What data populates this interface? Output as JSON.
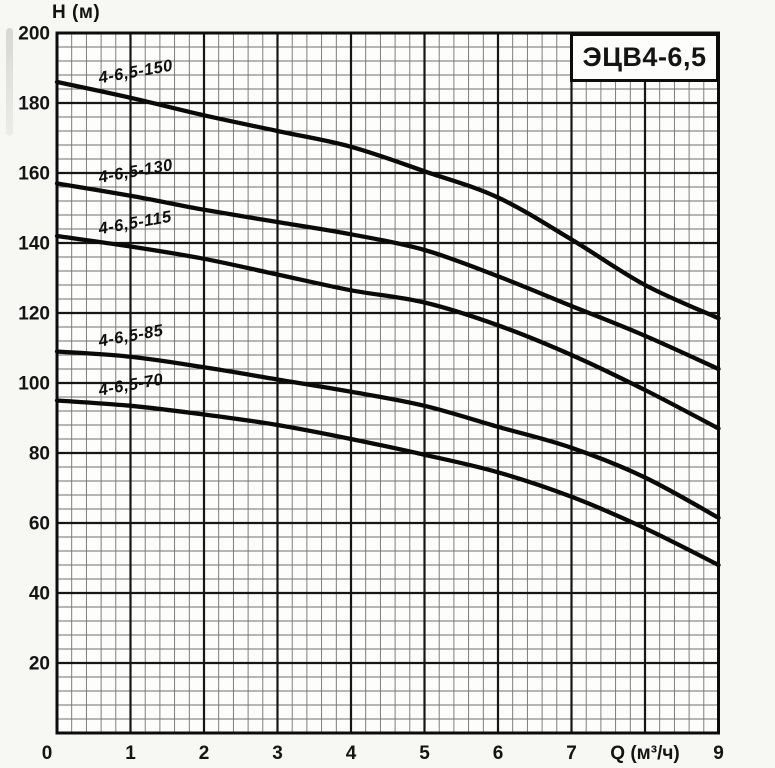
{
  "page": {
    "background": "#f7f7f4"
  },
  "title_box": {
    "label": "ЭЦВ4-6,5"
  },
  "axes": {
    "y_title": "H (м)",
    "x_title": "Q (м³/ч)",
    "origin_label": "0"
  },
  "chart_data": {
    "type": "line",
    "title": "ЭЦВ4-6,5",
    "xlabel": "Q (м³/ч)",
    "ylabel": "H (м)",
    "xlim": [
      0,
      9
    ],
    "ylim": [
      0,
      200
    ],
    "grid": "on",
    "legend_position": "inline-curve-labels",
    "x_major_step": 1,
    "x_minor_step": 0.2,
    "y_major_step": 20,
    "y_minor_step": 4,
    "y_tick_values": [
      200,
      180,
      160,
      140,
      120,
      100,
      80,
      60,
      40,
      20
    ],
    "x_tick_labels": [
      "0",
      "1",
      "2",
      "3",
      "4",
      "5",
      "6",
      "7",
      "Q (м³/ч)",
      "9"
    ],
    "x": [
      0,
      1,
      2,
      3,
      4,
      5,
      6,
      7,
      8,
      9
    ],
    "series": [
      {
        "name": "4-6,5-150",
        "values": [
          186,
          181.5,
          176.5,
          172,
          167.5,
          160.5,
          153,
          141,
          128,
          118.5
        ]
      },
      {
        "name": "4-6,5-130",
        "values": [
          157,
          153.5,
          149.5,
          146,
          142.5,
          138,
          130.5,
          122,
          113.5,
          104
        ]
      },
      {
        "name": "4-6,5-115",
        "values": [
          142,
          139,
          135.5,
          131,
          126.5,
          123,
          116.5,
          108,
          98,
          87
        ]
      },
      {
        "name": "4-6,5-85",
        "values": [
          109,
          107.5,
          104.5,
          101,
          97.5,
          93.5,
          87.5,
          81.5,
          73,
          61.5
        ]
      },
      {
        "name": "4-6,5-70",
        "values": [
          95,
          93.5,
          91,
          88,
          84,
          79.5,
          74.5,
          67.5,
          58.5,
          48
        ]
      }
    ],
    "curve_color": "#0a0a0a",
    "minor_grid_color": "#4d4d4d",
    "major_grid_color": "#161616",
    "border_color": "#0c0c0c"
  }
}
